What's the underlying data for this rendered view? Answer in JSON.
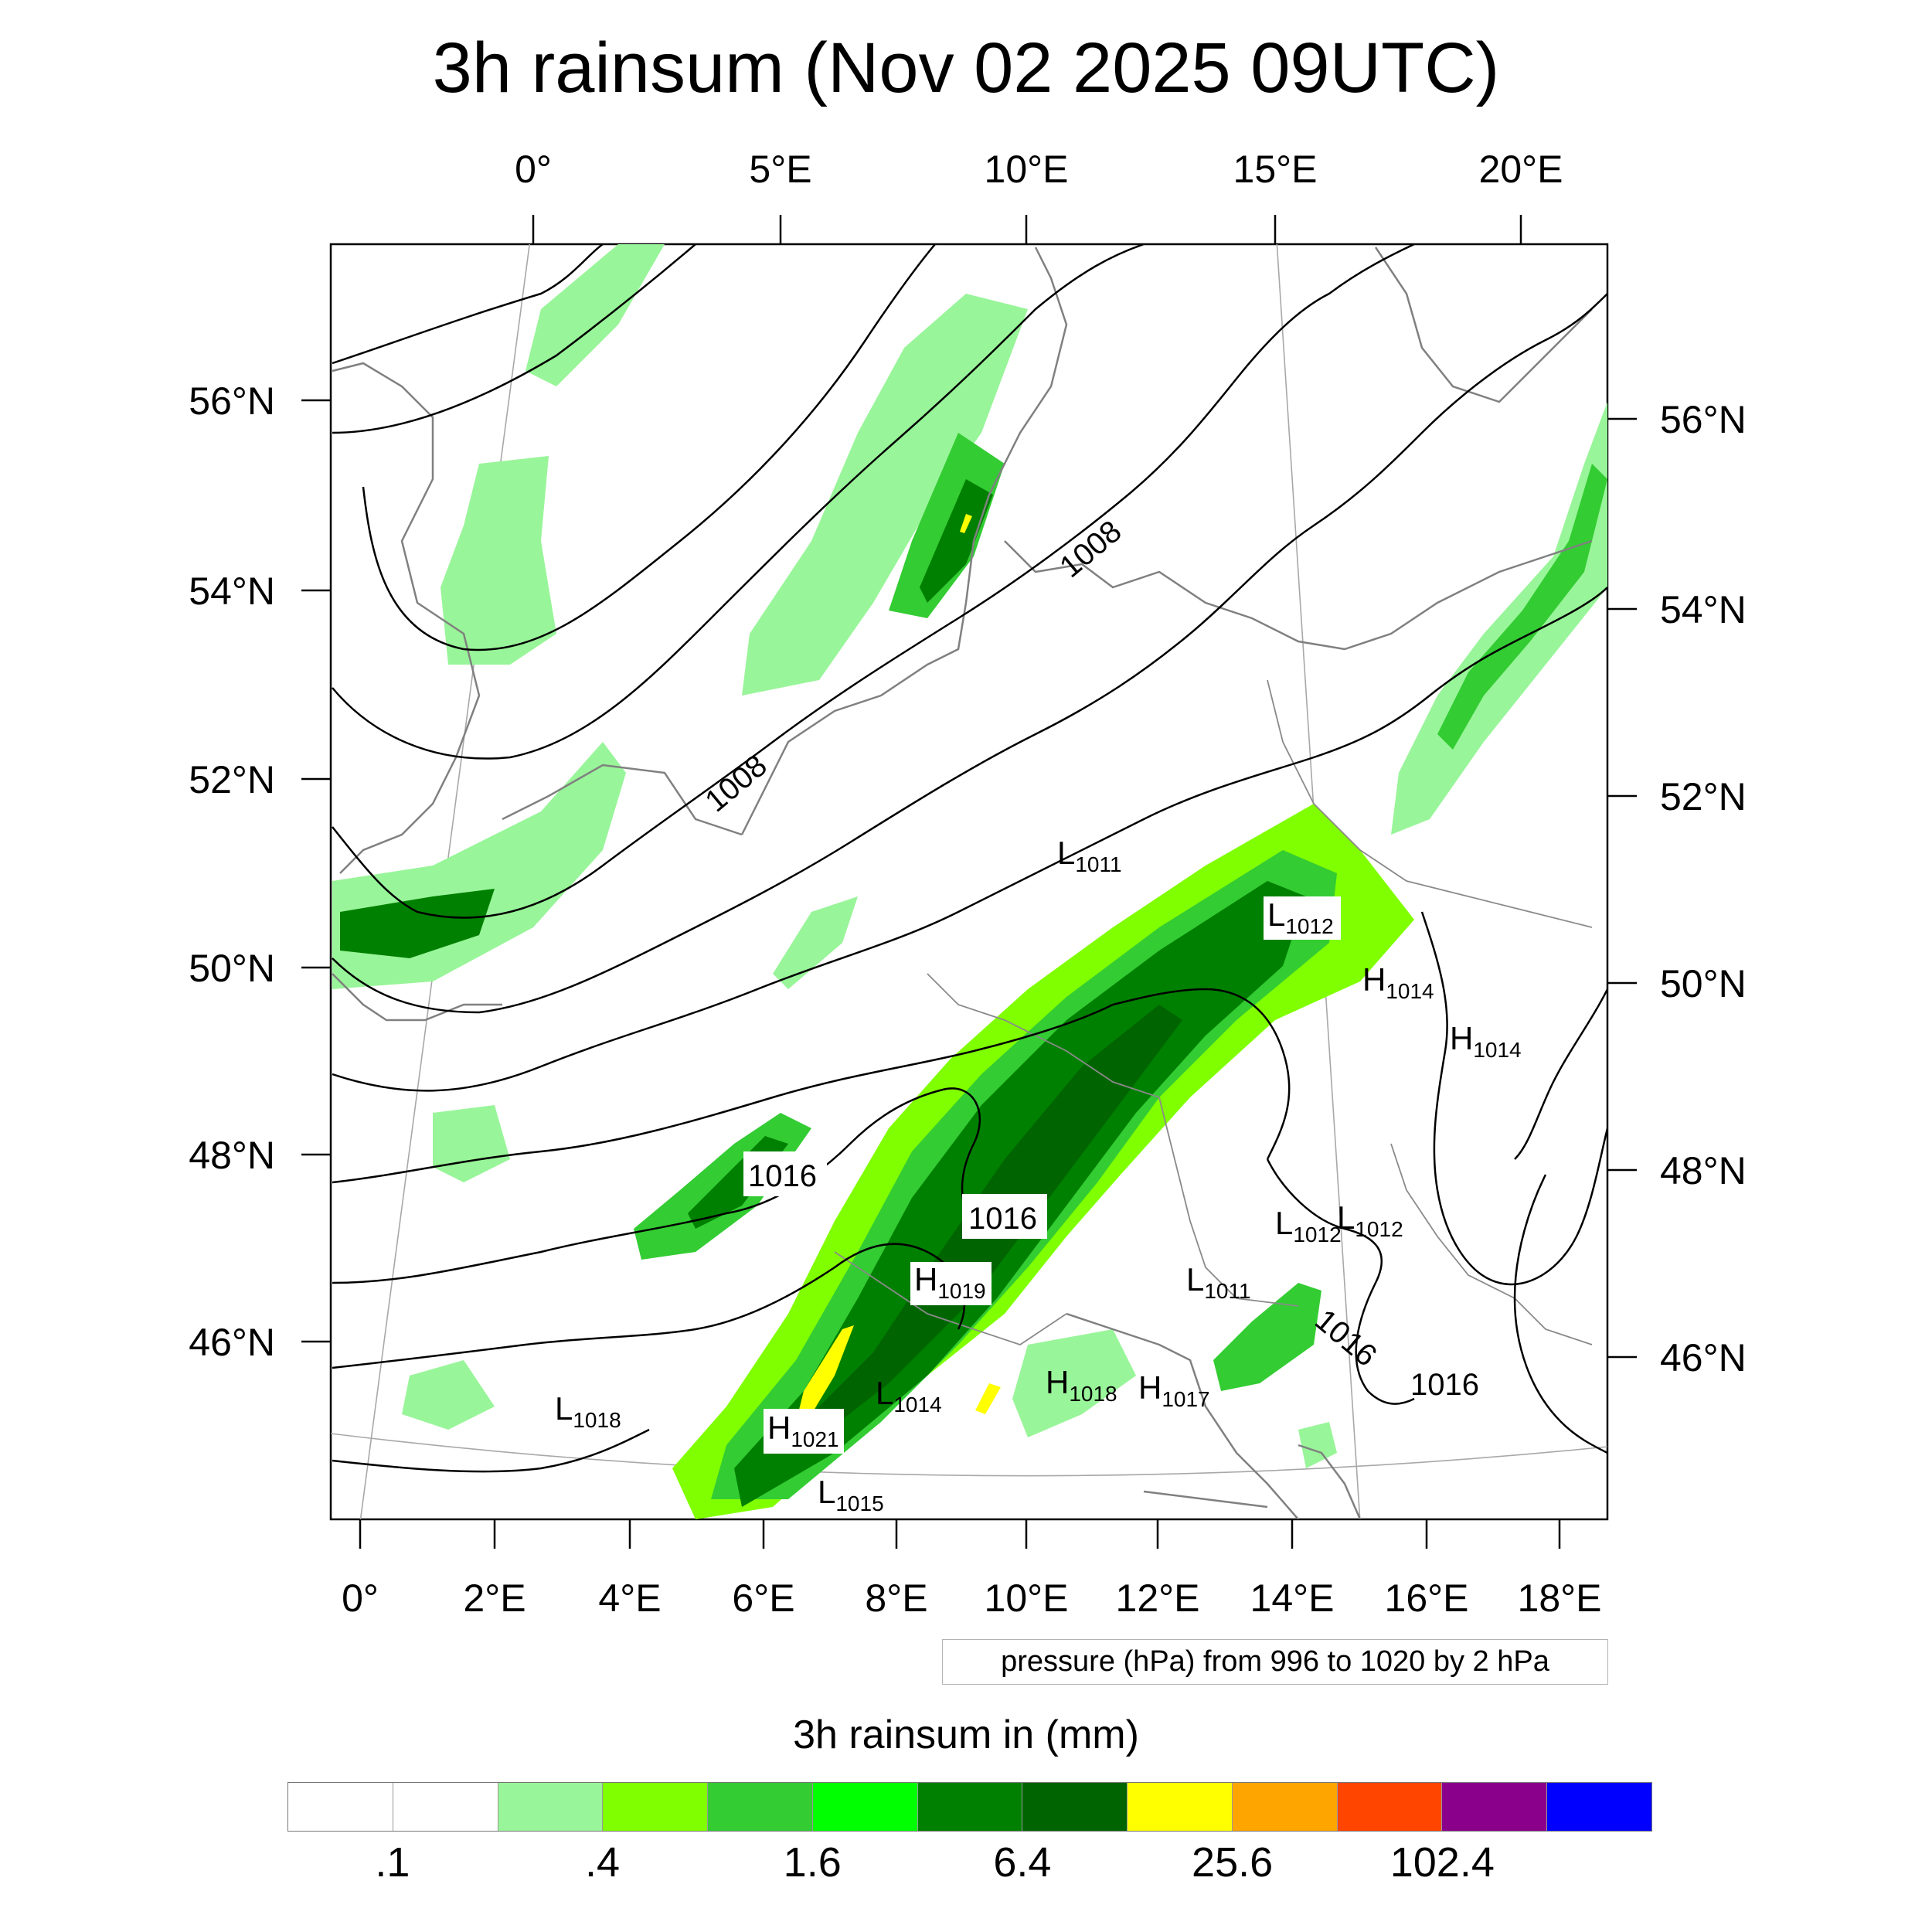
{
  "title": "3h rainsum (Nov 02 2025 09UTC)",
  "top_lon_labels": [
    "0°",
    "5°E",
    "10°E",
    "15°E",
    "20°E"
  ],
  "bottom_lon_labels": [
    "0°",
    "2°E",
    "4°E",
    "6°E",
    "8°E",
    "10°E",
    "12°E",
    "14°E",
    "16°E",
    "18°E"
  ],
  "left_lat_labels": [
    "56°N",
    "54°N",
    "52°N",
    "50°N",
    "48°N",
    "46°N"
  ],
  "right_lat_labels": [
    "56°N",
    "54°N",
    "52°N",
    "50°N",
    "48°N",
    "46°N"
  ],
  "isobar_labels": [
    "1008",
    "1008",
    "1016",
    "1016",
    "1016",
    "1016"
  ],
  "pressure_centers": [
    {
      "type": "L",
      "value": "1011"
    },
    {
      "type": "L",
      "value": "1012"
    },
    {
      "type": "H",
      "value": "1014"
    },
    {
      "type": "H",
      "value": "1014"
    },
    {
      "type": "L",
      "value": "1012"
    },
    {
      "type": "L",
      "value": "1012"
    },
    {
      "type": "L",
      "value": "1011"
    },
    {
      "type": "H",
      "value": "1019"
    },
    {
      "type": "L",
      "value": "1014"
    },
    {
      "type": "H",
      "value": "1018"
    },
    {
      "type": "H",
      "value": "1017"
    },
    {
      "type": "H",
      "value": "1021"
    },
    {
      "type": "L",
      "value": "1015"
    },
    {
      "type": "L",
      "value": "1018"
    }
  ],
  "contour_note": "pressure (hPa) from 996 to 1020 by 2 hPa",
  "colorbar": {
    "title": "3h rainsum in (mm)",
    "colors": [
      "#ffffff",
      "#ffffff",
      "#99f599",
      "#80ff00",
      "#33cc33",
      "#00ff00",
      "#008000",
      "#006400",
      "#ffff00",
      "#ffa500",
      "#ff4500",
      "#8b008b",
      "#0000ff"
    ],
    "labels": [
      ".1",
      ".4",
      "1.6",
      "6.4",
      "25.6",
      "102.4"
    ]
  },
  "rain_colors": {
    "light": "#99f599",
    "lime": "#80ff00",
    "mid": "#33cc33",
    "green": "#00ff00",
    "dark": "#008000",
    "darker": "#006400",
    "yellow": "#ffff00"
  }
}
